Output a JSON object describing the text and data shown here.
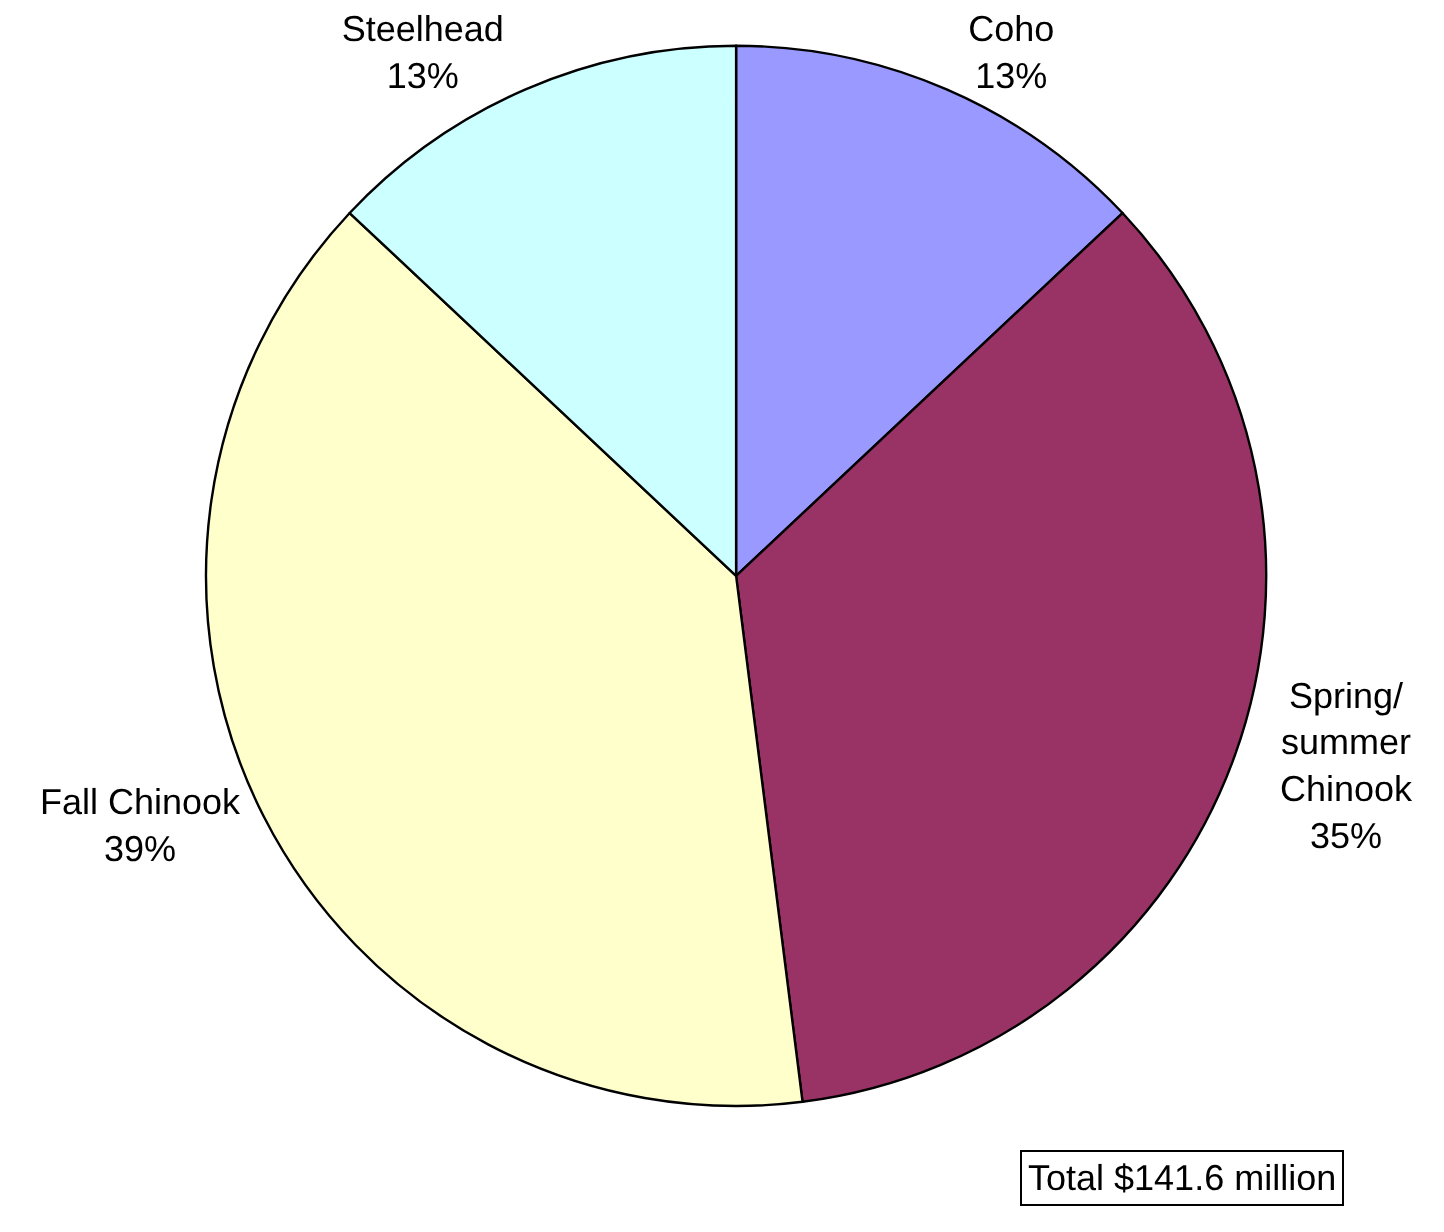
{
  "chart_data": {
    "type": "pie",
    "categories": [
      "Coho",
      "Spring/\nsummer\nChinook",
      "Fall Chinook",
      "Steelhead"
    ],
    "values": [
      13,
      35,
      39,
      13
    ],
    "value_labels": [
      "13%",
      "35%",
      "39%",
      "13%"
    ],
    "colors": [
      "#9999ff",
      "#993366",
      "#ffffcc",
      "#ccffff"
    ],
    "annotations": [
      "Total $141.6 million"
    ],
    "legend": false
  }
}
